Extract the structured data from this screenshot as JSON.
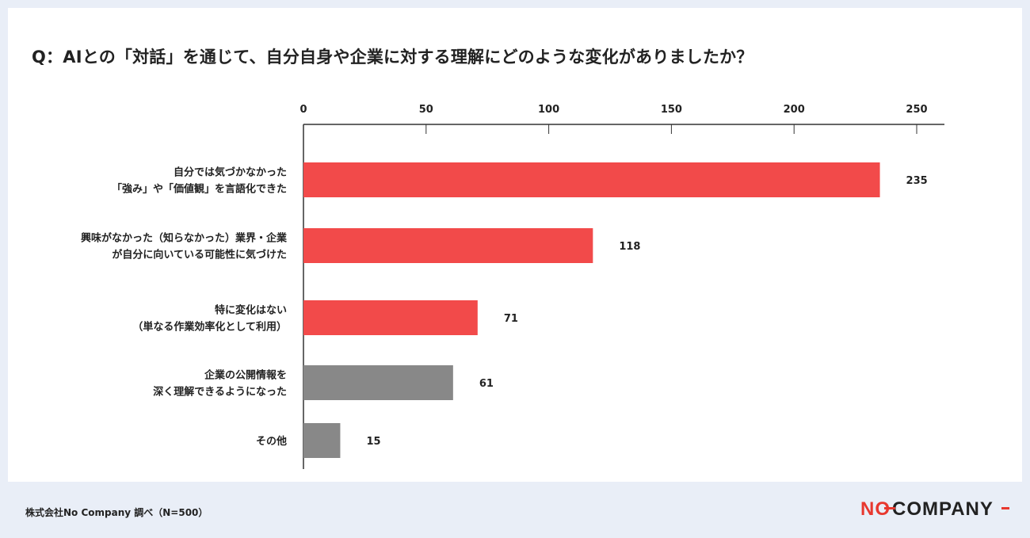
{
  "title": "Q：AIとの「対話」を通じて、自分自身や企業に対する理解にどのような変化がありましたか？",
  "footer": {
    "source": "株式会社No Company 調べ（N=500）",
    "logo_text": "NO COMPANY"
  },
  "colors": {
    "highlight": "#f24a4a",
    "muted": "#888888",
    "axis": "#333333",
    "background": "#e9eef7"
  },
  "chart_data": {
    "type": "bar",
    "orientation": "horizontal",
    "xlim": [
      0,
      250
    ],
    "x_ticks": [
      0,
      50,
      100,
      150,
      200,
      250
    ],
    "x_axis_position": "top",
    "grid": false,
    "categories": [
      [
        "自分では気づかなかった",
        "「強み」や「価値観」を言語化できた"
      ],
      [
        "興味がなかった（知らなかった）業界・企業",
        "が自分に向いている可能性に気づけた"
      ],
      [
        "特に変化はない",
        "（単なる作業効率化として利用）"
      ],
      [
        "企業の公開情報を",
        "深く理解できるようになった"
      ],
      [
        "その他"
      ]
    ],
    "values": [
      235,
      118,
      71,
      61,
      15
    ],
    "bar_colors": [
      "#f24a4a",
      "#f24a4a",
      "#f24a4a",
      "#888888",
      "#888888"
    ]
  }
}
